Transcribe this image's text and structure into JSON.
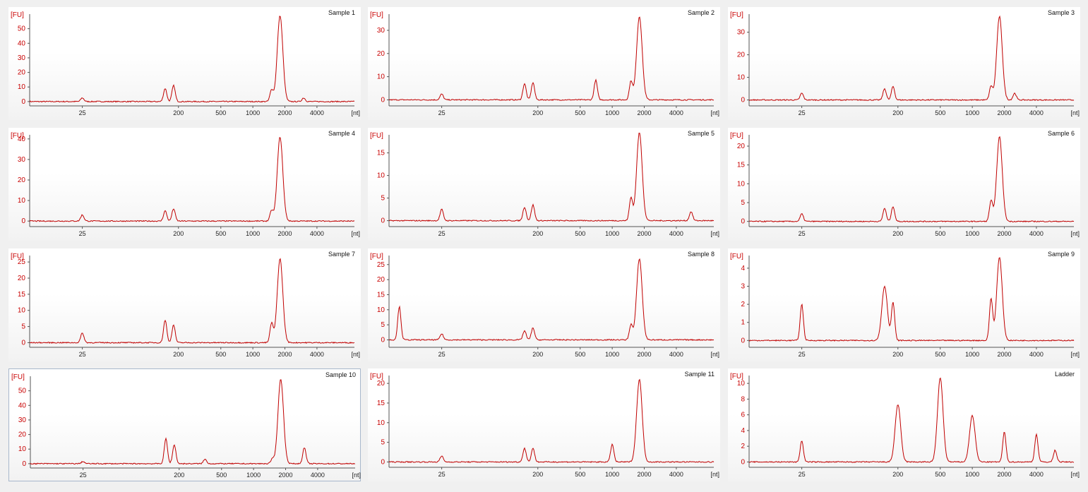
{
  "chart_data": [
    {
      "type": "line",
      "title": "Sample 1",
      "ylabel": "[FU]",
      "xlabel": "[nt]",
      "yticks": [
        0,
        10,
        20,
        30,
        40,
        50
      ],
      "ylim": [
        -2,
        60
      ],
      "xticks": [
        "25",
        "200",
        "500",
        "1000",
        "2000",
        "4000"
      ],
      "peaks": [
        {
          "x": "25",
          "y": 2.5
        },
        {
          "x": "~150",
          "y": 9
        },
        {
          "x": "~180",
          "y": 11
        },
        {
          "x": "~1500",
          "y": 8
        },
        {
          "x": "~1800",
          "y": 59
        },
        {
          "x": "~3000",
          "y": 2.5
        }
      ]
    },
    {
      "type": "line",
      "title": "Sample 2",
      "ylabel": "[FU]",
      "xlabel": "[nt]",
      "yticks": [
        0,
        10,
        20,
        30
      ],
      "ylim": [
        -2,
        37
      ],
      "xticks": [
        "25",
        "200",
        "500",
        "1000",
        "2000",
        "4000"
      ],
      "peaks": [
        {
          "x": "25",
          "y": 2.5
        },
        {
          "x": "~150",
          "y": 7
        },
        {
          "x": "~180",
          "y": 7.5
        },
        {
          "x": "~700",
          "y": 8.5
        },
        {
          "x": "~1500",
          "y": 8
        },
        {
          "x": "~1800",
          "y": 36
        }
      ]
    },
    {
      "type": "line",
      "title": "Sample 3",
      "ylabel": "[FU]",
      "xlabel": "[nt]",
      "yticks": [
        0,
        10,
        20,
        30
      ],
      "ylim": [
        -2,
        38
      ],
      "xticks": [
        "25",
        "200",
        "500",
        "1000",
        "2000",
        "4000"
      ],
      "peaks": [
        {
          "x": "25",
          "y": 3
        },
        {
          "x": "~150",
          "y": 5
        },
        {
          "x": "~180",
          "y": 6
        },
        {
          "x": "~1500",
          "y": 6
        },
        {
          "x": "~1800",
          "y": 37
        },
        {
          "x": "~2500",
          "y": 3
        }
      ]
    },
    {
      "type": "line",
      "title": "Sample 4",
      "ylabel": "[FU]",
      "xlabel": "[nt]",
      "yticks": [
        0,
        10,
        20,
        30,
        40
      ],
      "ylim": [
        -2,
        42
      ],
      "xticks": [
        "25",
        "200",
        "500",
        "1000",
        "2000",
        "4000"
      ],
      "peaks": [
        {
          "x": "25",
          "y": 3
        },
        {
          "x": "~150",
          "y": 5
        },
        {
          "x": "~180",
          "y": 6
        },
        {
          "x": "~1500",
          "y": 5
        },
        {
          "x": "~1800",
          "y": 41
        }
      ]
    },
    {
      "type": "line",
      "title": "Sample 5",
      "ylabel": "[FU]",
      "xlabel": "[nt]",
      "yticks": [
        0,
        5,
        10,
        15
      ],
      "ylim": [
        -1,
        19
      ],
      "xticks": [
        "25",
        "200",
        "500",
        "1000",
        "2000",
        "4000"
      ],
      "peaks": [
        {
          "x": "25",
          "y": 2.5
        },
        {
          "x": "~150",
          "y": 3
        },
        {
          "x": "~180",
          "y": 3.5
        },
        {
          "x": "~1500",
          "y": 5
        },
        {
          "x": "~1800",
          "y": 19.5
        },
        {
          "x": "~5500",
          "y": 2
        }
      ]
    },
    {
      "type": "line",
      "title": "Sample 6",
      "ylabel": "[FU]",
      "xlabel": "[nt]",
      "yticks": [
        0,
        5,
        10,
        15,
        20
      ],
      "ylim": [
        -1,
        23
      ],
      "xticks": [
        "25",
        "200",
        "500",
        "1000",
        "2000",
        "4000"
      ],
      "peaks": [
        {
          "x": "25",
          "y": 2
        },
        {
          "x": "~150",
          "y": 3.5
        },
        {
          "x": "~180",
          "y": 4
        },
        {
          "x": "~1500",
          "y": 5.5
        },
        {
          "x": "~1800",
          "y": 22.5
        }
      ]
    },
    {
      "type": "line",
      "title": "Sample 7",
      "ylabel": "[FU]",
      "xlabel": "[nt]",
      "yticks": [
        0,
        5,
        10,
        15,
        20,
        25
      ],
      "ylim": [
        -1,
        27
      ],
      "xticks": [
        "25",
        "200",
        "500",
        "1000",
        "2000",
        "4000"
      ],
      "peaks": [
        {
          "x": "25",
          "y": 3
        },
        {
          "x": "~150",
          "y": 7
        },
        {
          "x": "~180",
          "y": 5.5
        },
        {
          "x": "~1500",
          "y": 6
        },
        {
          "x": "~1800",
          "y": 26
        }
      ]
    },
    {
      "type": "line",
      "title": "Sample 8",
      "ylabel": "[FU]",
      "xlabel": "[nt]",
      "yticks": [
        0,
        5,
        10,
        15,
        20,
        25
      ],
      "ylim": [
        -2,
        28
      ],
      "xticks": [
        "25",
        "200",
        "500",
        "1000",
        "2000",
        "4000"
      ],
      "peaks": [
        {
          "x": "~10",
          "y": 11
        },
        {
          "x": "25",
          "y": 2
        },
        {
          "x": "~150",
          "y": 3
        },
        {
          "x": "~180",
          "y": 4
        },
        {
          "x": "~1500",
          "y": 5
        },
        {
          "x": "~1800",
          "y": 27
        }
      ]
    },
    {
      "type": "line",
      "title": "Sample 9",
      "ylabel": "[FU]",
      "xlabel": "[nt]",
      "yticks": [
        0,
        1,
        2,
        3,
        4
      ],
      "ylim": [
        -0.3,
        4.7
      ],
      "xticks": [
        "25",
        "200",
        "500",
        "1000",
        "2000",
        "4000"
      ],
      "peaks": [
        {
          "x": "25",
          "y": 2
        },
        {
          "x": "~150",
          "y": 3
        },
        {
          "x": "~180",
          "y": 2.1
        },
        {
          "x": "~1500",
          "y": 2.3
        },
        {
          "x": "~1800",
          "y": 4.6
        }
      ]
    },
    {
      "type": "line",
      "title": "Sample 10",
      "ylabel": "[FU]",
      "xlabel": "[nt]",
      "yticks": [
        0,
        10,
        20,
        30,
        40,
        50
      ],
      "ylim": [
        -2,
        60
      ],
      "xticks": [
        "25",
        "200",
        "500",
        "1000",
        "2000",
        "4000"
      ],
      "peaks": [
        {
          "x": "25",
          "y": 1.5
        },
        {
          "x": "~150",
          "y": 17
        },
        {
          "x": "~180",
          "y": 13
        },
        {
          "x": "~350",
          "y": 3
        },
        {
          "x": "~1500",
          "y": 3
        },
        {
          "x": "~1800",
          "y": 58
        },
        {
          "x": "~3000",
          "y": 11
        }
      ]
    },
    {
      "type": "line",
      "title": "Sample 11",
      "ylabel": "[FU]",
      "xlabel": "[nt]",
      "yticks": [
        0,
        5,
        10,
        15,
        20
      ],
      "ylim": [
        -1,
        22
      ],
      "xticks": [
        "25",
        "200",
        "500",
        "1000",
        "2000",
        "4000"
      ],
      "peaks": [
        {
          "x": "25",
          "y": 1.5
        },
        {
          "x": "~150",
          "y": 3.5
        },
        {
          "x": "~180",
          "y": 3.5
        },
        {
          "x": "~1000",
          "y": 4.5
        },
        {
          "x": "~1800",
          "y": 21
        }
      ]
    },
    {
      "type": "line",
      "title": "Ladder",
      "ylabel": "[FU]",
      "xlabel": "[nt]",
      "yticks": [
        0,
        2,
        4,
        6,
        8,
        10
      ],
      "ylim": [
        -0.5,
        11
      ],
      "xticks": [
        "25",
        "200",
        "500",
        "1000",
        "2000",
        "4000"
      ],
      "peaks": [
        {
          "x": "25",
          "y": 2.7
        },
        {
          "x": "200",
          "y": 7.3
        },
        {
          "x": "500",
          "y": 10.7
        },
        {
          "x": "1000",
          "y": 5.9
        },
        {
          "x": "2000",
          "y": 3.8
        },
        {
          "x": "4000",
          "y": 3.5
        },
        {
          "x": "~6000",
          "y": 1.5
        }
      ]
    }
  ],
  "colors": {
    "trace": "#c00000",
    "axis_label": "#c80000",
    "selected_border": "#a8b8cc"
  },
  "selected_panel": "Sample 10"
}
